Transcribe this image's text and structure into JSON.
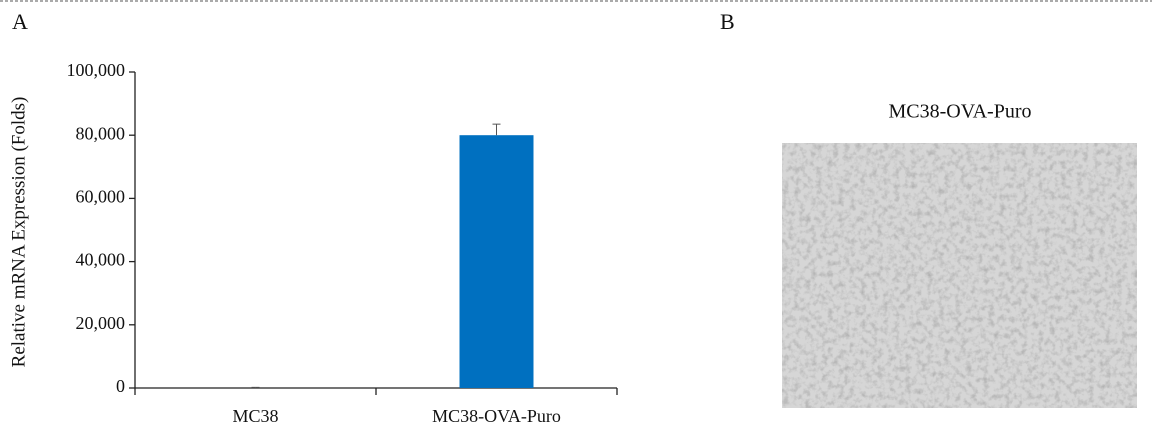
{
  "panels": {
    "a": "A",
    "b": "B"
  },
  "image": {
    "title": "MC38-OVA-Puro"
  },
  "chart_data": {
    "type": "bar",
    "ylabel": "Relative mRNA Expression (Folds)",
    "categories": [
      "MC38",
      "MC38-OVA-Puro"
    ],
    "values": [
      1,
      80000
    ],
    "errors": [
      200,
      3500
    ],
    "color": "#0070c0",
    "ylim": [
      0,
      100000
    ],
    "yticks": [
      0,
      {
        "value": 20000,
        "label": "20,000"
      },
      {
        "value": 40000,
        "label": "40,000"
      },
      {
        "value": 60000,
        "label": "60,000"
      },
      {
        "value": 80000,
        "label": "80,000"
      },
      {
        "value": 100000,
        "label": "100,000"
      }
    ]
  }
}
